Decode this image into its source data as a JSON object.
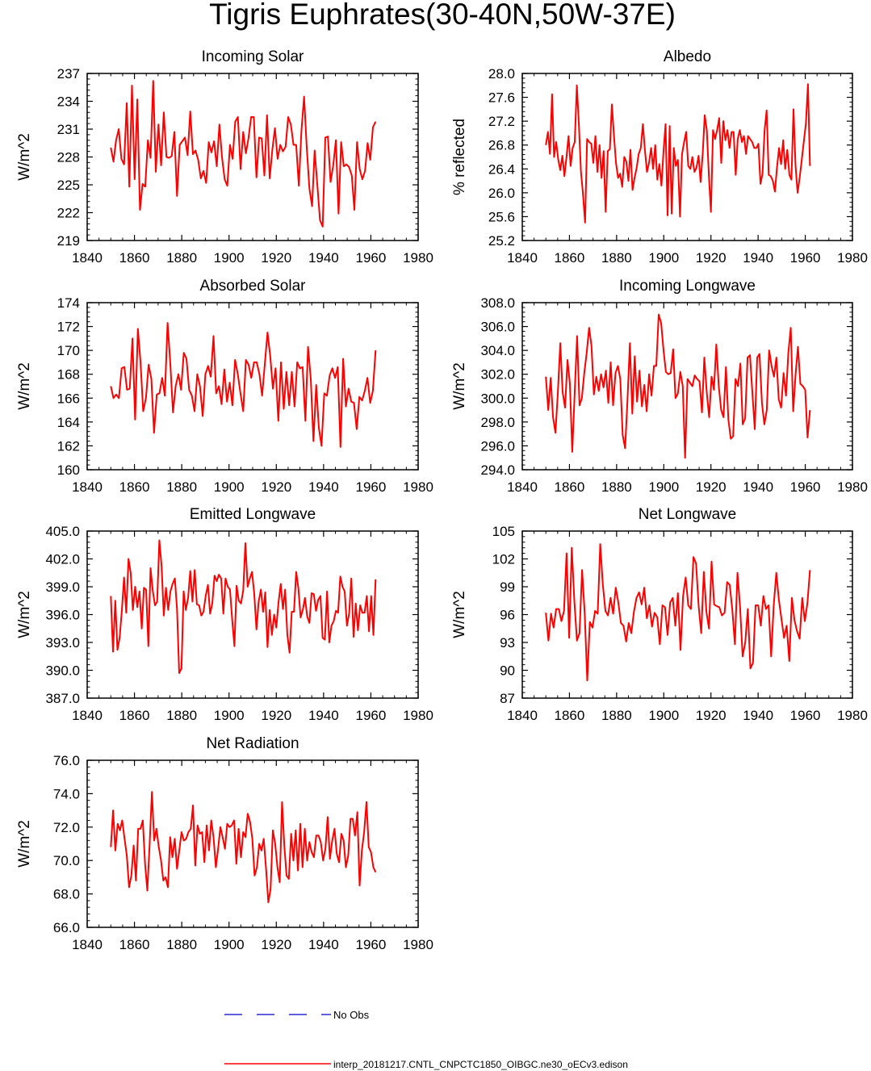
{
  "title": "Tigris Euphrates(30-40N,50W-37E)",
  "legend": {
    "obs_label": "No Obs",
    "model_label": "interp_20181217.CNTL_CNPCTC1850_OIBGC.ne30_oECv3.edison",
    "obs_color": "#0000cc",
    "model_color": "#ff0000"
  },
  "chart_data": [
    {
      "type": "line",
      "title": "Incoming Solar",
      "ylabel": "W/m^2",
      "xlim": [
        1840,
        1980
      ],
      "ylim": [
        219,
        237
      ],
      "xticks": [
        "1840",
        "1860",
        "1880",
        "1900",
        "1920",
        "1940",
        "1960",
        "1980"
      ],
      "yticks": [
        "219",
        "222",
        "225",
        "228",
        "231",
        "234",
        "237"
      ],
      "x_start": 1850,
      "series": [
        {
          "values": [
            229.0,
            227.5,
            229.8,
            231.0,
            227.8,
            227.2,
            233.8,
            224.8,
            235.7,
            225.6,
            234.2,
            222.3,
            225.1,
            224.8,
            229.8,
            227.9,
            236.2,
            226.4,
            231.5,
            227.1,
            232.8,
            228.0,
            227.9,
            228.1,
            230.7,
            223.8,
            229.3,
            229.7,
            230.1,
            228.2,
            232.9,
            228.3,
            228.7,
            227.7,
            225.7,
            226.5,
            225.2,
            229.6,
            228.5,
            229.7,
            227.0,
            231.5,
            228.0,
            225.6,
            224.9,
            229.3,
            227.8,
            231.8,
            232.3,
            226.7,
            230.7,
            228.4,
            230.0,
            232.3,
            232.3,
            225.8,
            230.1,
            230.0,
            226.0,
            232.5,
            225.7,
            228.8,
            231.1,
            227.8,
            229.3,
            228.6,
            229.1,
            232.3,
            231.5,
            229.3,
            229.3,
            224.9,
            230.8,
            234.5,
            229.0,
            224.6,
            222.7,
            228.7,
            225.0,
            221.2,
            220.5,
            230.1,
            230.2,
            225.3,
            227.1,
            229.8,
            221.9,
            229.6,
            227.0,
            227.2,
            226.9,
            226.0,
            222.3,
            229.6,
            226.7,
            225.6,
            226.5,
            229.5,
            227.7,
            231.2,
            231.8
          ]
        }
      ]
    },
    {
      "type": "line",
      "title": "Albedo",
      "ylabel": "% reflected",
      "xlim": [
        1840,
        1980
      ],
      "ylim": [
        25.2,
        28.0
      ],
      "xticks": [
        "1840",
        "1860",
        "1880",
        "1900",
        "1920",
        "1940",
        "1960",
        "1980"
      ],
      "yticks": [
        "25.2",
        "25.6",
        "26.0",
        "26.4",
        "26.8",
        "27.2",
        "27.6",
        "28.0"
      ],
      "x_start": 1850,
      "series": [
        {
          "values": [
            26.8,
            27.02,
            26.65,
            27.65,
            26.6,
            26.85,
            26.55,
            26.38,
            26.62,
            26.28,
            26.6,
            26.95,
            26.45,
            26.75,
            26.85,
            27.8,
            27.15,
            26.35,
            25.98,
            25.5,
            26.9,
            26.85,
            26.82,
            26.5,
            26.95,
            26.35,
            26.8,
            26.25,
            26.7,
            25.68,
            26.7,
            26.73,
            27.48,
            26.95,
            26.5,
            26.25,
            26.32,
            26.1,
            26.6,
            26.52,
            26.2,
            26.72,
            26.05,
            26.25,
            26.42,
            26.65,
            26.75,
            27.15,
            26.72,
            26.35,
            26.5,
            26.75,
            26.4,
            26.8,
            26.22,
            26.48,
            26.12,
            26.68,
            27.15,
            25.62,
            27.12,
            25.65,
            26.75,
            26.45,
            26.55,
            25.6,
            26.65,
            26.85,
            27.02,
            26.45,
            26.4,
            26.6,
            26.35,
            26.42,
            26.62,
            26.18,
            26.65,
            27.3,
            27.05,
            26.28,
            25.68,
            27.05,
            26.9,
            27.05,
            27.25,
            26.5,
            27.2,
            26.88,
            27.05,
            26.75,
            27.02,
            27.02,
            26.3,
            26.9,
            27.05,
            26.85,
            26.95,
            26.65,
            26.95,
            26.9,
            26.85,
            26.75,
            26.75,
            26.82,
            26.15,
            26.32,
            27.05,
            27.38,
            26.3,
            26.28,
            26.2,
            26.02,
            26.42,
            26.75,
            26.48,
            26.88,
            26.4,
            26.72,
            26.3,
            26.22,
            27.4,
            26.45,
            26.0,
            26.25,
            26.55,
            26.85,
            27.15,
            27.82,
            26.45
          ]
        }
      ]
    },
    {
      "type": "line",
      "title": "Absorbed Solar",
      "ylabel": "W/m^2",
      "xlim": [
        1840,
        1980
      ],
      "ylim": [
        160,
        174
      ],
      "xticks": [
        "1840",
        "1860",
        "1880",
        "1900",
        "1920",
        "1940",
        "1960",
        "1980"
      ],
      "yticks": [
        "160",
        "162",
        "164",
        "166",
        "168",
        "170",
        "172",
        "174"
      ],
      "x_start": 1850,
      "series": [
        {
          "values": [
            167.0,
            166.0,
            166.3,
            166.0,
            168.5,
            168.6,
            166.7,
            166.8,
            171.0,
            164.2,
            171.8,
            169.0,
            164.9,
            166.0,
            168.8,
            167.6,
            163.1,
            166.3,
            166.4,
            167.7,
            166.2,
            172.3,
            169.0,
            164.8,
            167.0,
            168.0,
            166.7,
            169.8,
            169.3,
            166.7,
            166.2,
            164.9,
            168.0,
            167.0,
            164.5,
            168.0,
            168.7,
            167.8,
            171.2,
            166.4,
            167.0,
            165.5,
            168.4,
            165.7,
            167.3,
            165.4,
            169.2,
            168.0,
            166.4,
            164.9,
            169.2,
            168.8,
            167.7,
            169.0,
            169.0,
            168.0,
            166.2,
            168.9,
            171.5,
            169.5,
            166.8,
            168.5,
            164.1,
            169.0,
            165.1,
            168.2,
            165.4,
            168.2,
            165.3,
            169.0,
            168.5,
            168.6,
            164.1,
            170.3,
            167.6,
            162.4,
            167.1,
            163.5,
            162.0,
            166.4,
            166.2,
            167.9,
            168.5,
            167.7,
            168.6,
            161.9,
            169.3,
            165.3,
            166.8,
            165.7,
            165.6,
            163.4,
            166.1,
            165.8,
            166.6,
            167.7,
            165.6,
            166.6,
            170.0
          ]
        }
      ]
    },
    {
      "type": "line",
      "title": "Incoming Longwave",
      "ylabel": "W/m^2",
      "xlim": [
        1840,
        1980
      ],
      "ylim": [
        294.0,
        308.0
      ],
      "xticks": [
        "1840",
        "1860",
        "1880",
        "1900",
        "1920",
        "1940",
        "1960",
        "1980"
      ],
      "yticks": [
        "294.0",
        "296.0",
        "298.0",
        "300.0",
        "302.0",
        "304.0",
        "306.0",
        "308.0"
      ],
      "x_start": 1850,
      "series": [
        {
          "values": [
            301.8,
            299.0,
            301.7,
            298.4,
            297.1,
            300.5,
            304.6,
            300.5,
            299.2,
            303.2,
            301.2,
            295.5,
            300.4,
            305.2,
            299.4,
            300.0,
            302.1,
            303.8,
            305.9,
            304.4,
            300.3,
            301.8,
            300.6,
            302.0,
            300.9,
            302.3,
            299.6,
            303.0,
            299.4,
            302.1,
            302.7,
            301.6,
            296.9,
            295.8,
            299.8,
            304.6,
            298.7,
            303.5,
            299.7,
            302.3,
            299.3,
            301.1,
            298.9,
            302.0,
            300.2,
            302.7,
            302.7,
            307.0,
            306.3,
            304.0,
            302.2,
            302.0,
            302.1,
            304.1,
            300.0,
            300.4,
            302.2,
            301.0,
            295.0,
            301.6,
            301.3,
            301.0,
            301.9,
            301.6,
            301.4,
            298.8,
            303.4,
            300.5,
            298.4,
            301.8,
            300.7,
            304.5,
            301.0,
            299.0,
            298.4,
            302.6,
            298.2,
            296.6,
            296.8,
            301.6,
            301.0,
            302.9,
            297.8,
            298.3,
            303.4,
            303.6,
            300.5,
            297.4,
            303.4,
            303.7,
            299.6,
            297.8,
            299.0,
            304.0,
            302.7,
            301.8,
            303.4,
            299.9,
            299.2,
            302.1,
            300.2,
            303.8,
            305.9,
            298.9,
            302.0,
            304.3,
            301.2,
            301.0,
            300.7,
            296.7,
            299.0
          ]
        }
      ]
    },
    {
      "type": "line",
      "title": "Emitted Longwave",
      "ylabel": "W/m^2",
      "xlim": [
        1840,
        1980
      ],
      "ylim": [
        387.0,
        405.0
      ],
      "xticks": [
        "1840",
        "1860",
        "1880",
        "1900",
        "1920",
        "1940",
        "1960",
        "1980"
      ],
      "yticks": [
        "387.0",
        "390.0",
        "393.0",
        "396.0",
        "399.0",
        "402.0",
        "405.0"
      ],
      "x_start": 1850,
      "series": [
        {
          "values": [
            398.0,
            392.0,
            397.5,
            392.2,
            393.5,
            396.5,
            400.0,
            396.2,
            402.0,
            400.5,
            396.5,
            399.0,
            396.8,
            398.5,
            394.5,
            398.9,
            398.7,
            392.6,
            401.0,
            398.6,
            397.0,
            397.4,
            404.0,
            401.2,
            395.9,
            398.9,
            396.5,
            398.5,
            399.3,
            399.9,
            396.6,
            389.7,
            390.2,
            398.5,
            396.5,
            397.8,
            400.7,
            397.4,
            400.8,
            397.1,
            397.0,
            395.9,
            396.3,
            398.0,
            399.2,
            396.1,
            397.2,
            400.2,
            399.6,
            400.3,
            399.9,
            396.1,
            399.9,
            399.0,
            398.7,
            395.5,
            392.6,
            399.1,
            397.5,
            397.2,
            398.6,
            403.7,
            399.0,
            399.9,
            400.6,
            398.2,
            394.4,
            397.4,
            398.7,
            396.3,
            398.4,
            392.5,
            396.5,
            393.8,
            396.0,
            394.6,
            397.3,
            399.3,
            396.6,
            398.7,
            393.8,
            391.9,
            396.3,
            396.3,
            400.6,
            398.9,
            395.7,
            396.5,
            397.8,
            395.8,
            395.1,
            398.3,
            398.2,
            396.4,
            397.6,
            398.0,
            393.5,
            393.3,
            398.5,
            393.0,
            394.8,
            395.3,
            396.4,
            396.2,
            400.1,
            399.0,
            398.5,
            394.8,
            396.1,
            399.9,
            393.6,
            397.2,
            394.3,
            397.0,
            396.2,
            396.2,
            398.0,
            394.2,
            398.0,
            393.8,
            399.8
          ]
        }
      ]
    },
    {
      "type": "line",
      "title": "Net Longwave",
      "ylabel": "W/m^2",
      "xlim": [
        1840,
        1980
      ],
      "ylim": [
        87,
        105
      ],
      "xticks": [
        "1840",
        "1860",
        "1880",
        "1900",
        "1920",
        "1940",
        "1960",
        "1980"
      ],
      "yticks": [
        "87",
        "90",
        "93",
        "96",
        "99",
        "102",
        "105"
      ],
      "x_start": 1850,
      "series": [
        {
          "values": [
            96.2,
            93.2,
            96.1,
            94.6,
            96.6,
            96.6,
            95.3,
            96.4,
            102.6,
            93.5,
            103.2,
            97.5,
            93.2,
            94.0,
            100.8,
            96.2,
            88.9,
            95.2,
            94.6,
            96.4,
            96.1,
            103.6,
            99.2,
            96.4,
            95.9,
            97.8,
            96.1,
            98.9,
            97.3,
            95.1,
            94.8,
            93.1,
            95.1,
            94.0,
            96.3,
            97.8,
            98.4,
            97.1,
            98.9,
            95.6,
            97.0,
            94.7,
            96.2,
            95.7,
            92.8,
            97.0,
            96.8,
            93.8,
            97.3,
            97.8,
            94.8,
            98.3,
            92.2,
            98.0,
            100.0,
            97.0,
            96.6,
            102.2,
            101.5,
            96.9,
            94.0,
            100.6,
            96.3,
            94.5,
            101.7,
            97.1,
            96.9,
            96.8,
            95.9,
            96.2,
            99.5,
            99.2,
            96.5,
            92.8,
            100.5,
            96.8,
            91.5,
            93.0,
            96.6,
            90.2,
            90.8,
            97.0,
            97.0,
            94.8,
            98.0,
            96.6,
            97.0,
            91.5,
            97.0,
            100.5,
            97.6,
            95.5,
            93.5,
            94.8,
            91.0,
            97.8,
            95.4,
            94.2,
            93.4,
            97.8,
            95.3,
            97.2,
            100.8
          ]
        }
      ]
    },
    {
      "type": "line",
      "title": "Net Radiation",
      "ylabel": "W/m^2",
      "xlim": [
        1840,
        1980
      ],
      "ylim": [
        66.0,
        76.0
      ],
      "xticks": [
        "1840",
        "1860",
        "1880",
        "1900",
        "1920",
        "1940",
        "1960",
        "1980"
      ],
      "yticks": [
        "66.0",
        "68.0",
        "70.0",
        "72.0",
        "74.0",
        "76.0"
      ],
      "x_start": 1850,
      "series": [
        {
          "values": [
            70.8,
            73.0,
            70.6,
            72.2,
            71.8,
            72.4,
            71.3,
            70.3,
            68.4,
            69.1,
            70.9,
            68.8,
            71.9,
            71.9,
            72.4,
            69.8,
            68.2,
            71.0,
            74.1,
            71.2,
            71.9,
            70.8,
            70.0,
            68.8,
            69.0,
            68.4,
            71.4,
            70.2,
            71.3,
            69.5,
            70.6,
            71.7,
            71.2,
            71.3,
            71.7,
            71.9,
            73.3,
            69.7,
            72.1,
            71.6,
            71.7,
            69.9,
            72.1,
            70.6,
            72.4,
            71.4,
            69.6,
            70.7,
            72.0,
            71.4,
            70.7,
            72.2,
            72.0,
            72.1,
            72.4,
            69.8,
            71.9,
            70.2,
            71.7,
            71.4,
            72.8,
            72.3,
            71.3,
            69.1,
            69.6,
            71.0,
            70.6,
            71.3,
            69.5,
            67.5,
            68.3,
            71.8,
            71.0,
            69.6,
            68.7,
            73.5,
            70.9,
            69.1,
            68.9,
            71.6,
            70.0,
            71.8,
            69.4,
            72.2,
            69.6,
            71.9,
            70.0,
            71.1,
            70.5,
            70.2,
            71.5,
            71.5,
            71.1,
            70.0,
            70.7,
            72.6,
            70.1,
            71.2,
            71.9,
            70.4,
            69.9,
            71.6,
            71.2,
            69.6,
            70.3,
            72.5,
            72.5,
            71.5,
            72.9,
            68.5,
            70.6,
            71.7,
            73.5,
            70.8,
            70.5,
            69.6,
            69.3
          ]
        }
      ]
    }
  ]
}
